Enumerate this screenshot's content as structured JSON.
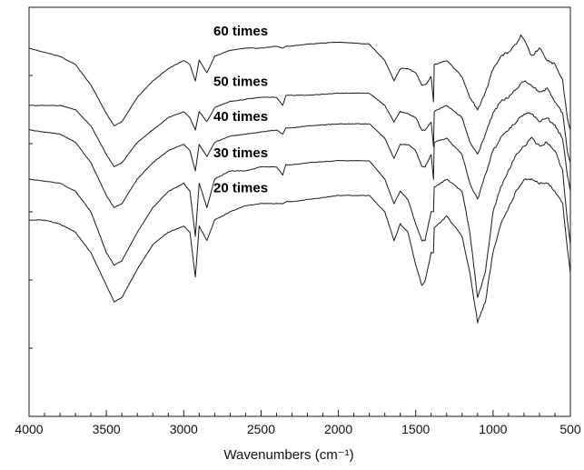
{
  "chart_data": {
    "type": "line",
    "title": "",
    "xlabel": "Wavenumbers (cm⁻¹)",
    "ylabel": "",
    "xlim": [
      4000,
      500
    ],
    "x_reversed": true,
    "xticks": [
      4000,
      3500,
      3000,
      2500,
      2000,
      1500,
      1000,
      500
    ],
    "xtick_labels": [
      "4000",
      "3500",
      "3000",
      "2500",
      "2000",
      "1500",
      "1000",
      "500"
    ],
    "ylim": [
      0,
      1
    ],
    "grid": false,
    "series": [
      {
        "name": "60 times",
        "x": [
          4000,
          3900,
          3800,
          3700,
          3600,
          3500,
          3450,
          3400,
          3300,
          3200,
          3100,
          3000,
          2960,
          2925,
          2900,
          2850,
          2800,
          2700,
          2600,
          2500,
          2400,
          2360,
          2340,
          2300,
          2200,
          2000,
          1800,
          1700,
          1640,
          1600,
          1550,
          1500,
          1460,
          1440,
          1400,
          1385,
          1380,
          1300,
          1200,
          1150,
          1100,
          1050,
          1000,
          950,
          900,
          850,
          820,
          800,
          750,
          700,
          650,
          600,
          550,
          520,
          500
        ],
        "y": [
          0.9,
          0.89,
          0.88,
          0.86,
          0.81,
          0.74,
          0.71,
          0.72,
          0.78,
          0.82,
          0.85,
          0.87,
          0.86,
          0.82,
          0.87,
          0.84,
          0.88,
          0.895,
          0.9,
          0.9,
          0.905,
          0.9,
          0.905,
          0.905,
          0.91,
          0.915,
          0.91,
          0.87,
          0.82,
          0.85,
          0.85,
          0.84,
          0.81,
          0.81,
          0.83,
          0.77,
          0.86,
          0.87,
          0.83,
          0.78,
          0.75,
          0.79,
          0.85,
          0.88,
          0.89,
          0.91,
          0.93,
          0.92,
          0.88,
          0.9,
          0.87,
          0.86,
          0.82,
          0.73,
          0.7
        ]
      },
      {
        "name": "50 times",
        "x": [
          4000,
          3900,
          3800,
          3700,
          3600,
          3500,
          3450,
          3400,
          3300,
          3200,
          3100,
          3000,
          2960,
          2925,
          2900,
          2850,
          2800,
          2700,
          2600,
          2500,
          2400,
          2360,
          2340,
          2300,
          2200,
          2000,
          1800,
          1700,
          1640,
          1600,
          1550,
          1500,
          1460,
          1440,
          1400,
          1385,
          1380,
          1300,
          1200,
          1150,
          1100,
          1050,
          1000,
          950,
          900,
          850,
          800,
          750,
          700,
          650,
          600,
          550,
          520,
          500
        ],
        "y": [
          0.76,
          0.76,
          0.76,
          0.75,
          0.71,
          0.64,
          0.61,
          0.62,
          0.67,
          0.7,
          0.73,
          0.745,
          0.73,
          0.7,
          0.745,
          0.72,
          0.755,
          0.77,
          0.775,
          0.78,
          0.78,
          0.76,
          0.785,
          0.785,
          0.785,
          0.79,
          0.79,
          0.76,
          0.72,
          0.745,
          0.74,
          0.73,
          0.7,
          0.7,
          0.72,
          0.66,
          0.745,
          0.76,
          0.73,
          0.67,
          0.64,
          0.69,
          0.74,
          0.77,
          0.78,
          0.8,
          0.82,
          0.81,
          0.79,
          0.8,
          0.77,
          0.74,
          0.65,
          0.62
        ]
      },
      {
        "name": "40 times",
        "x": [
          4000,
          3900,
          3800,
          3700,
          3600,
          3500,
          3450,
          3400,
          3300,
          3200,
          3100,
          3000,
          2960,
          2925,
          2900,
          2850,
          2800,
          2700,
          2600,
          2500,
          2400,
          2360,
          2340,
          2300,
          2200,
          2000,
          1800,
          1700,
          1640,
          1600,
          1550,
          1500,
          1460,
          1440,
          1400,
          1385,
          1380,
          1300,
          1200,
          1150,
          1100,
          1050,
          1000,
          950,
          900,
          850,
          800,
          750,
          700,
          650,
          600,
          550,
          520,
          500
        ],
        "y": [
          0.7,
          0.695,
          0.69,
          0.67,
          0.62,
          0.54,
          0.51,
          0.52,
          0.58,
          0.62,
          0.65,
          0.665,
          0.65,
          0.6,
          0.665,
          0.635,
          0.67,
          0.685,
          0.69,
          0.695,
          0.7,
          0.69,
          0.705,
          0.705,
          0.71,
          0.715,
          0.715,
          0.68,
          0.63,
          0.665,
          0.665,
          0.65,
          0.61,
          0.61,
          0.64,
          0.58,
          0.67,
          0.68,
          0.64,
          0.57,
          0.53,
          0.59,
          0.65,
          0.68,
          0.7,
          0.72,
          0.74,
          0.74,
          0.72,
          0.73,
          0.71,
          0.68,
          0.59,
          0.55
        ]
      },
      {
        "name": "30 times",
        "x": [
          4000,
          3900,
          3800,
          3700,
          3600,
          3500,
          3450,
          3400,
          3300,
          3200,
          3100,
          3000,
          2960,
          2925,
          2900,
          2850,
          2800,
          2700,
          2600,
          2500,
          2400,
          2360,
          2340,
          2300,
          2200,
          2000,
          1800,
          1700,
          1640,
          1600,
          1550,
          1500,
          1460,
          1440,
          1400,
          1385,
          1380,
          1300,
          1200,
          1150,
          1100,
          1050,
          1000,
          950,
          900,
          850,
          800,
          750,
          700,
          650,
          600,
          550,
          520,
          500
        ],
        "y": [
          0.58,
          0.575,
          0.57,
          0.55,
          0.5,
          0.4,
          0.37,
          0.38,
          0.45,
          0.51,
          0.55,
          0.57,
          0.55,
          0.44,
          0.57,
          0.51,
          0.58,
          0.6,
          0.6,
          0.61,
          0.61,
          0.59,
          0.615,
          0.615,
          0.62,
          0.625,
          0.625,
          0.58,
          0.52,
          0.55,
          0.53,
          0.47,
          0.43,
          0.43,
          0.5,
          0.5,
          0.56,
          0.58,
          0.55,
          0.45,
          0.29,
          0.35,
          0.5,
          0.56,
          0.6,
          0.64,
          0.66,
          0.68,
          0.66,
          0.67,
          0.65,
          0.6,
          0.48,
          0.42
        ]
      },
      {
        "name": "20 times",
        "x": [
          4000,
          3900,
          3800,
          3700,
          3600,
          3500,
          3450,
          3400,
          3300,
          3200,
          3100,
          3000,
          2960,
          2925,
          2900,
          2850,
          2800,
          2700,
          2600,
          2500,
          2400,
          2360,
          2340,
          2300,
          2200,
          2000,
          1800,
          1700,
          1640,
          1600,
          1550,
          1500,
          1460,
          1440,
          1400,
          1385,
          1380,
          1300,
          1200,
          1150,
          1100,
          1050,
          1000,
          950,
          900,
          850,
          800,
          750,
          700,
          650,
          600,
          550,
          520,
          500
        ],
        "y": [
          0.48,
          0.48,
          0.47,
          0.45,
          0.4,
          0.32,
          0.28,
          0.29,
          0.36,
          0.42,
          0.45,
          0.465,
          0.45,
          0.34,
          0.465,
          0.43,
          0.48,
          0.5,
          0.515,
          0.52,
          0.52,
          0.52,
          0.525,
          0.525,
          0.53,
          0.54,
          0.54,
          0.5,
          0.43,
          0.47,
          0.45,
          0.37,
          0.32,
          0.33,
          0.4,
          0.4,
          0.46,
          0.49,
          0.44,
          0.35,
          0.23,
          0.28,
          0.4,
          0.47,
          0.51,
          0.55,
          0.58,
          0.58,
          0.57,
          0.57,
          0.55,
          0.52,
          0.41,
          0.35
        ]
      }
    ]
  }
}
